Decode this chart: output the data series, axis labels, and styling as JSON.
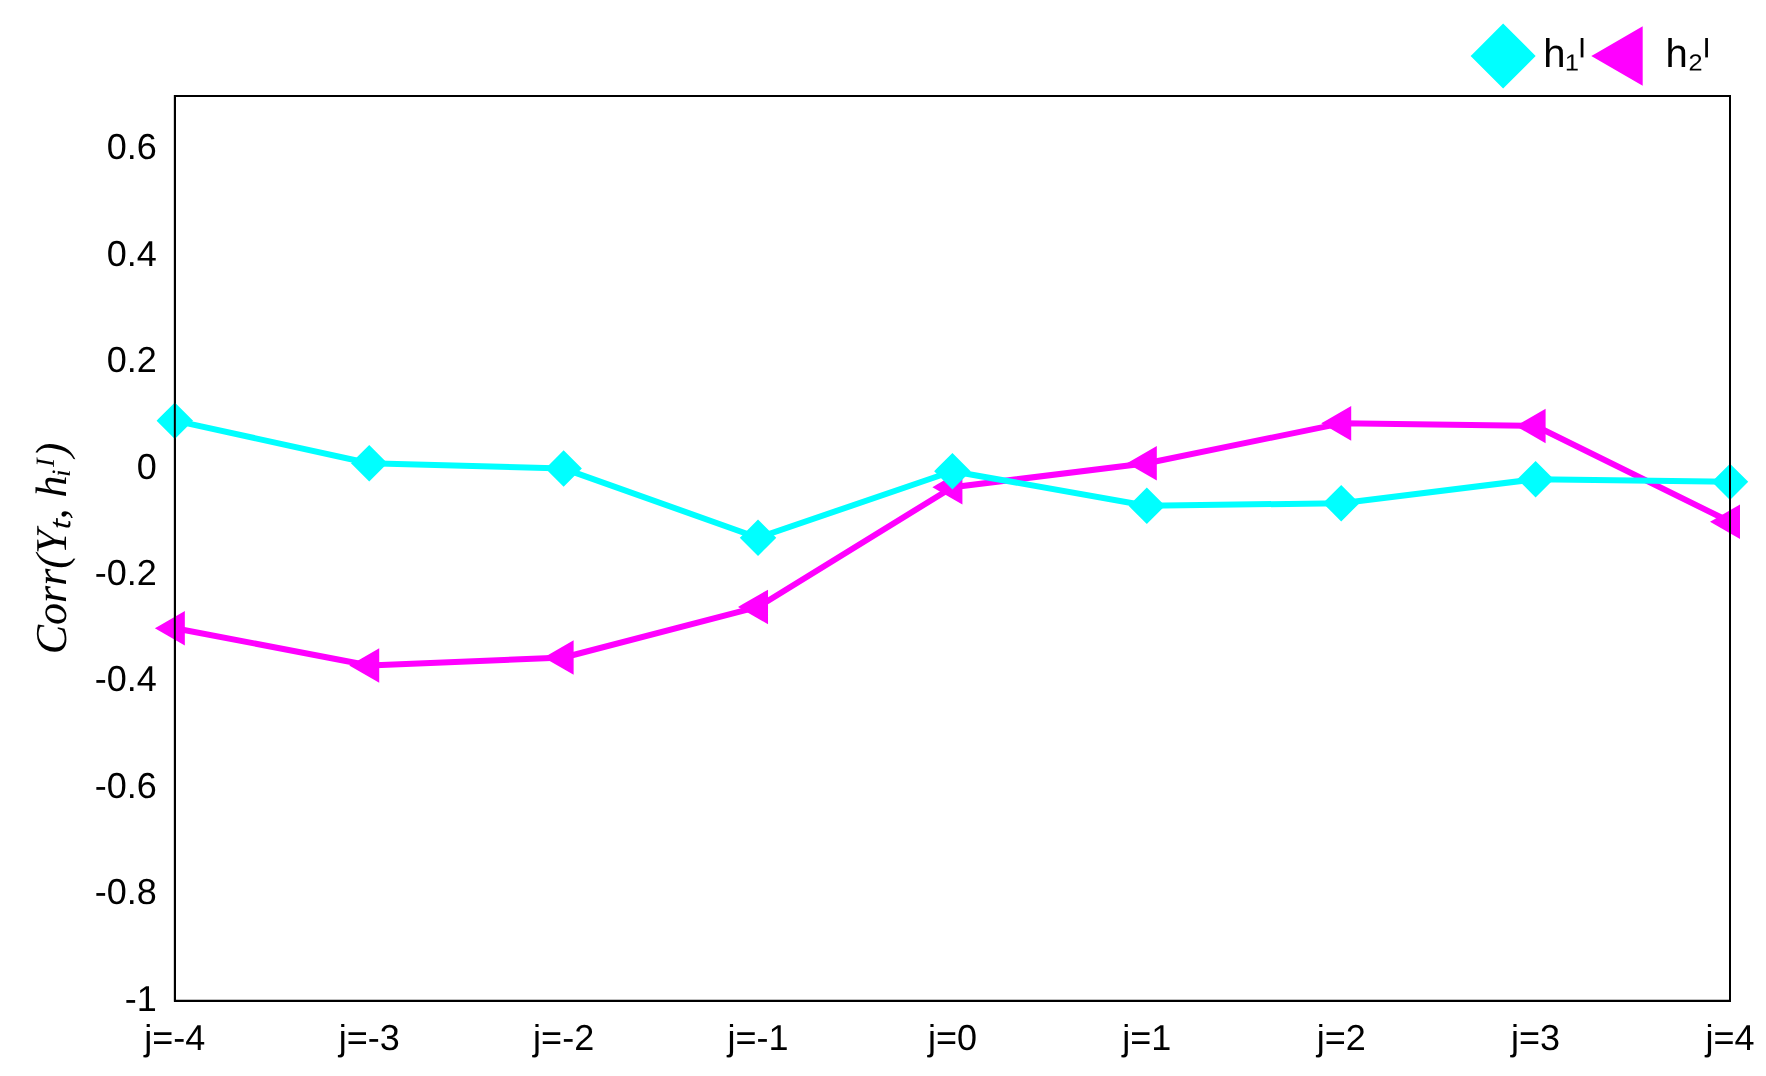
{
  "chart_data": {
    "type": "line",
    "ylabel": "Corr(Yₜ, hᵢᴵ)",
    "categories": [
      "j=-4",
      "j=-3",
      "j=-2",
      "j=-1",
      "j=0",
      "j=1",
      "j=2",
      "j=3",
      "j=4"
    ],
    "series": [
      {
        "name": "h₁ᴵ",
        "color": "#00ffff",
        "marker": "diamond",
        "values": [
          0.09,
          0.01,
          0,
          -0.13,
          -0.005,
          -0.07,
          -0.065,
          -0.02,
          -0.025
        ]
      },
      {
        "name": "h₂ᴵ",
        "color": "#ff00ff",
        "marker": "triangle",
        "values": [
          -0.3,
          -0.37,
          -0.355,
          -0.26,
          -0.035,
          0.01,
          0.085,
          0.08,
          -0.1
        ]
      }
    ],
    "ylim": [
      -1,
      0.7
    ],
    "yticks": [
      -1,
      -0.8,
      -0.6,
      -0.4,
      -0.2,
      0,
      0.2,
      0.4,
      0.6
    ],
    "grid": false,
    "legend": "top right",
    "line_style": "solid"
  }
}
